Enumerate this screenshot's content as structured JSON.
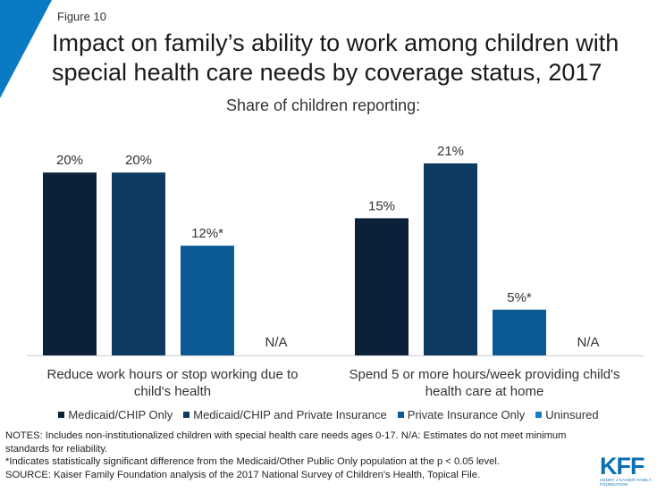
{
  "figure_label": "Figure 10",
  "title": "Impact on family’s ability to work among children with special health care needs by coverage status, 2017",
  "subtitle": "Share of children reporting:",
  "colors": {
    "corner": "#0a7ac4",
    "series": [
      "#0b2138",
      "#0e3a62",
      "#0b5a96",
      "#1a7cc4"
    ]
  },
  "chart_data": {
    "type": "bar",
    "categories": [
      "Reduce work hours or stop working due to child's health",
      "Spend 5 or more hours/week providing child's health care at home"
    ],
    "series": [
      {
        "name": "Medicaid/CHIP Only",
        "values": [
          20,
          15
        ],
        "labels": [
          "20%",
          "15%"
        ]
      },
      {
        "name": "Medicaid/CHIP and Private Insurance",
        "values": [
          20,
          21
        ],
        "labels": [
          "20%",
          "21%"
        ]
      },
      {
        "name": "Private Insurance Only",
        "values": [
          12,
          5
        ],
        "labels": [
          "12%*",
          "5%*"
        ]
      },
      {
        "name": "Uninsured",
        "values": [
          null,
          null
        ],
        "labels": [
          "N/A",
          "N/A"
        ]
      }
    ],
    "ylim": [
      0,
      21
    ],
    "grid": false,
    "legend_position": "bottom"
  },
  "notes": [
    "NOTES: Includes non-institutionalized children with special health care needs ages 0-17. N/A: Estimates do not meet minimum standards for reliability.",
    "*Indicates statistically significant difference from the Medicaid/Other Public Only population at the p < 0.05 level.",
    "SOURCE: Kaiser Family Foundation analysis of the 2017 National Survey of Children's Health, Topical File."
  ],
  "logo": {
    "word": "KFF",
    "sub": "HENRY J KAISER FAMILY FOUNDATION"
  }
}
